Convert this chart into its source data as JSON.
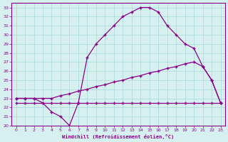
{
  "xlabel": "Windchill (Refroidissement éolien,°C)",
  "line_color": "#880088",
  "marker": "+",
  "background_color": "#d6f0f0",
  "grid_color": "#a8d8d8",
  "xlim": [
    -0.5,
    23.5
  ],
  "ylim": [
    20,
    33.5
  ],
  "xticks": [
    0,
    1,
    2,
    3,
    4,
    5,
    6,
    7,
    8,
    9,
    10,
    11,
    12,
    13,
    14,
    15,
    16,
    17,
    18,
    19,
    20,
    21,
    22,
    23
  ],
  "yticks": [
    20,
    21,
    22,
    23,
    24,
    25,
    26,
    27,
    28,
    29,
    30,
    31,
    32,
    33
  ],
  "line1_x": [
    0,
    1,
    2,
    3,
    4,
    5,
    6,
    7,
    8,
    9,
    10,
    11,
    12,
    13,
    14,
    15,
    16,
    17,
    18,
    19,
    20,
    21,
    22,
    23
  ],
  "line1_y": [
    22.5,
    22.5,
    22.5,
    22.5,
    22.5,
    22.5,
    22.5,
    22.5,
    22.5,
    22.5,
    22.5,
    22.5,
    22.5,
    22.5,
    22.5,
    22.5,
    22.5,
    22.5,
    22.5,
    22.5,
    22.5,
    22.5,
    22.5,
    22.5
  ],
  "line2_x": [
    0,
    1,
    2,
    3,
    4,
    5,
    6,
    7,
    8,
    9,
    10,
    11,
    12,
    13,
    14,
    15,
    16,
    17,
    18,
    19,
    20,
    21,
    22,
    23
  ],
  "line2_y": [
    23.0,
    23.0,
    23.0,
    23.0,
    23.0,
    23.3,
    23.5,
    23.8,
    24.0,
    24.3,
    24.5,
    24.8,
    25.0,
    25.3,
    25.5,
    25.8,
    26.0,
    26.3,
    26.5,
    26.8,
    27.0,
    26.5,
    25.0,
    22.5
  ],
  "line3_x": [
    0,
    1,
    2,
    3,
    4,
    5,
    6,
    7,
    8,
    9,
    10,
    11,
    12,
    13,
    14,
    15,
    16,
    17,
    18,
    19,
    20,
    21,
    22,
    23
  ],
  "line3_y": [
    23.0,
    23.0,
    23.0,
    22.5,
    21.5,
    21.0,
    20.0,
    22.5,
    27.5,
    29.0,
    30.0,
    31.0,
    32.0,
    32.5,
    33.0,
    33.0,
    32.5,
    31.0,
    30.0,
    29.0,
    28.5,
    26.5,
    25.0,
    22.5
  ]
}
